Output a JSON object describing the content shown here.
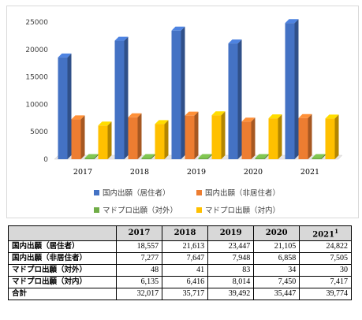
{
  "chart_data": {
    "type": "bar",
    "categories": [
      "2017",
      "2018",
      "2019",
      "2020",
      "2021"
    ],
    "series": [
      {
        "name": "国内出願（居住者）",
        "color": "#4472c4",
        "values": [
          18557,
          21613,
          23447,
          21105,
          24822
        ]
      },
      {
        "name": "国内出願（非居住者）",
        "color": "#ed7d31",
        "values": [
          7277,
          7647,
          7948,
          6858,
          7505
        ]
      },
      {
        "name": "マドプロ出願（対外）",
        "color": "#70ad47",
        "values": [
          48,
          41,
          83,
          34,
          30
        ]
      },
      {
        "name": "マドプロ出願（対内）",
        "color": "#ffc000",
        "values": [
          6135,
          6416,
          8014,
          7450,
          7417
        ]
      }
    ],
    "ylim": [
      0,
      25000
    ],
    "yticks": [
      "0",
      "5000",
      "10000",
      "15000",
      "20000",
      "25000"
    ],
    "grid": false,
    "legend_position": "bottom",
    "style": "3d-columns"
  },
  "table": {
    "header": [
      "",
      "2017",
      "2018",
      "2019",
      "2020",
      "2021"
    ],
    "header_last_sup": "1",
    "rows": [
      {
        "label": "国内出願（居住者）",
        "cells": [
          "18,557",
          "21,613",
          "23,447",
          "21,105",
          "24,822"
        ]
      },
      {
        "label": "国内出願（非居住者）",
        "cells": [
          "7,277",
          "7,647",
          "7,948",
          "6,858",
          "7,505"
        ]
      },
      {
        "label": "マドプロ出願（対外）",
        "cells": [
          "48",
          "41",
          "83",
          "34",
          "30"
        ]
      },
      {
        "label": "マドプロ出願（対内）",
        "cells": [
          "6,135",
          "6,416",
          "8,014",
          "7,450",
          "7,417"
        ]
      },
      {
        "label": "合計",
        "cells": [
          "32,017",
          "35,717",
          "39,492",
          "35,447",
          "39,774"
        ]
      }
    ]
  }
}
